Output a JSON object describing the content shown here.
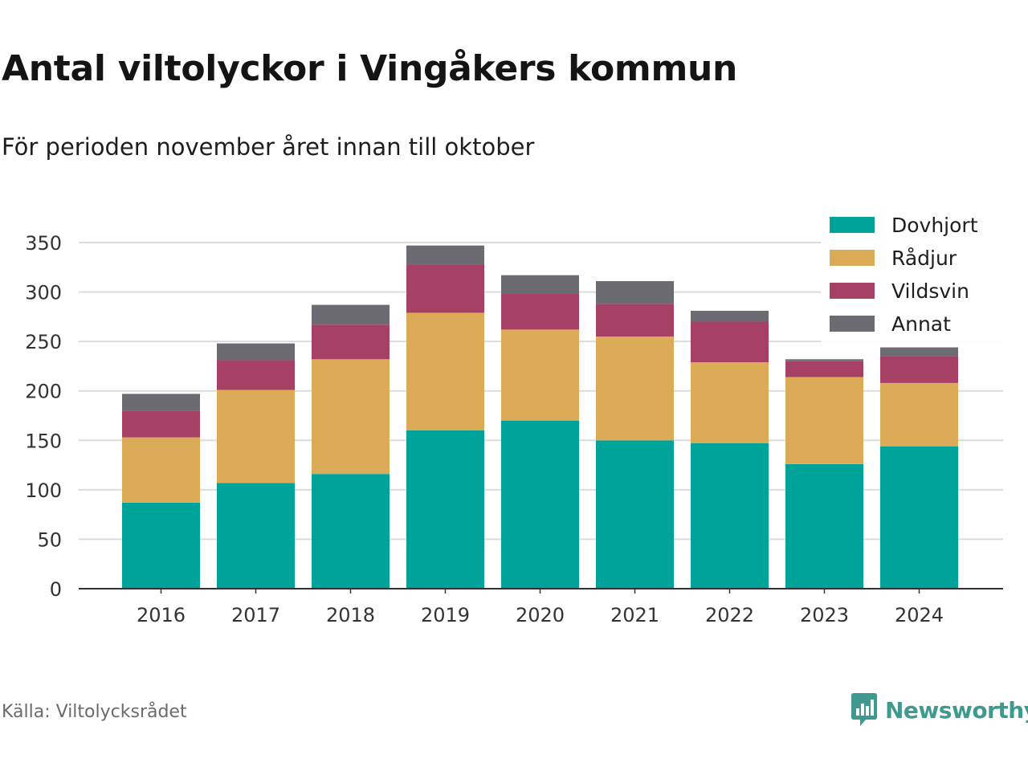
{
  "header": {
    "title": "Antal viltolyckor i Vingåkers kommun",
    "subtitle": "För perioden november året innan till oktober"
  },
  "footer": {
    "source": "Källa: Viltolycksrådet",
    "brand": "Newsworthy"
  },
  "chart_data": {
    "type": "bar",
    "stacked": true,
    "title": "Antal viltolyckor i Vingåkers kommun",
    "subtitle": "För perioden november året innan till oktober",
    "xlabel": "",
    "ylabel": "",
    "categories": [
      "2016",
      "2017",
      "2018",
      "2019",
      "2020",
      "2021",
      "2022",
      "2023",
      "2024"
    ],
    "ylim": [
      0,
      350
    ],
    "yticks": [
      0,
      50,
      100,
      150,
      200,
      250,
      300,
      350
    ],
    "grid": true,
    "legend_position": "top-right",
    "series": [
      {
        "name": "Dovhjort",
        "color": "#00a39a",
        "values": [
          87,
          107,
          116,
          160,
          170,
          150,
          147,
          126,
          144
        ]
      },
      {
        "name": "Rådjur",
        "color": "#dcab58",
        "values": [
          66,
          94,
          116,
          119,
          92,
          105,
          82,
          88,
          64
        ]
      },
      {
        "name": "Vildsvin",
        "color": "#a64065",
        "values": [
          27,
          30,
          35,
          49,
          36,
          33,
          41,
          16,
          27
        ]
      },
      {
        "name": "Annat",
        "color": "#6d6b72",
        "values": [
          17,
          17,
          20,
          19,
          19,
          23,
          11,
          2,
          9
        ]
      }
    ]
  }
}
